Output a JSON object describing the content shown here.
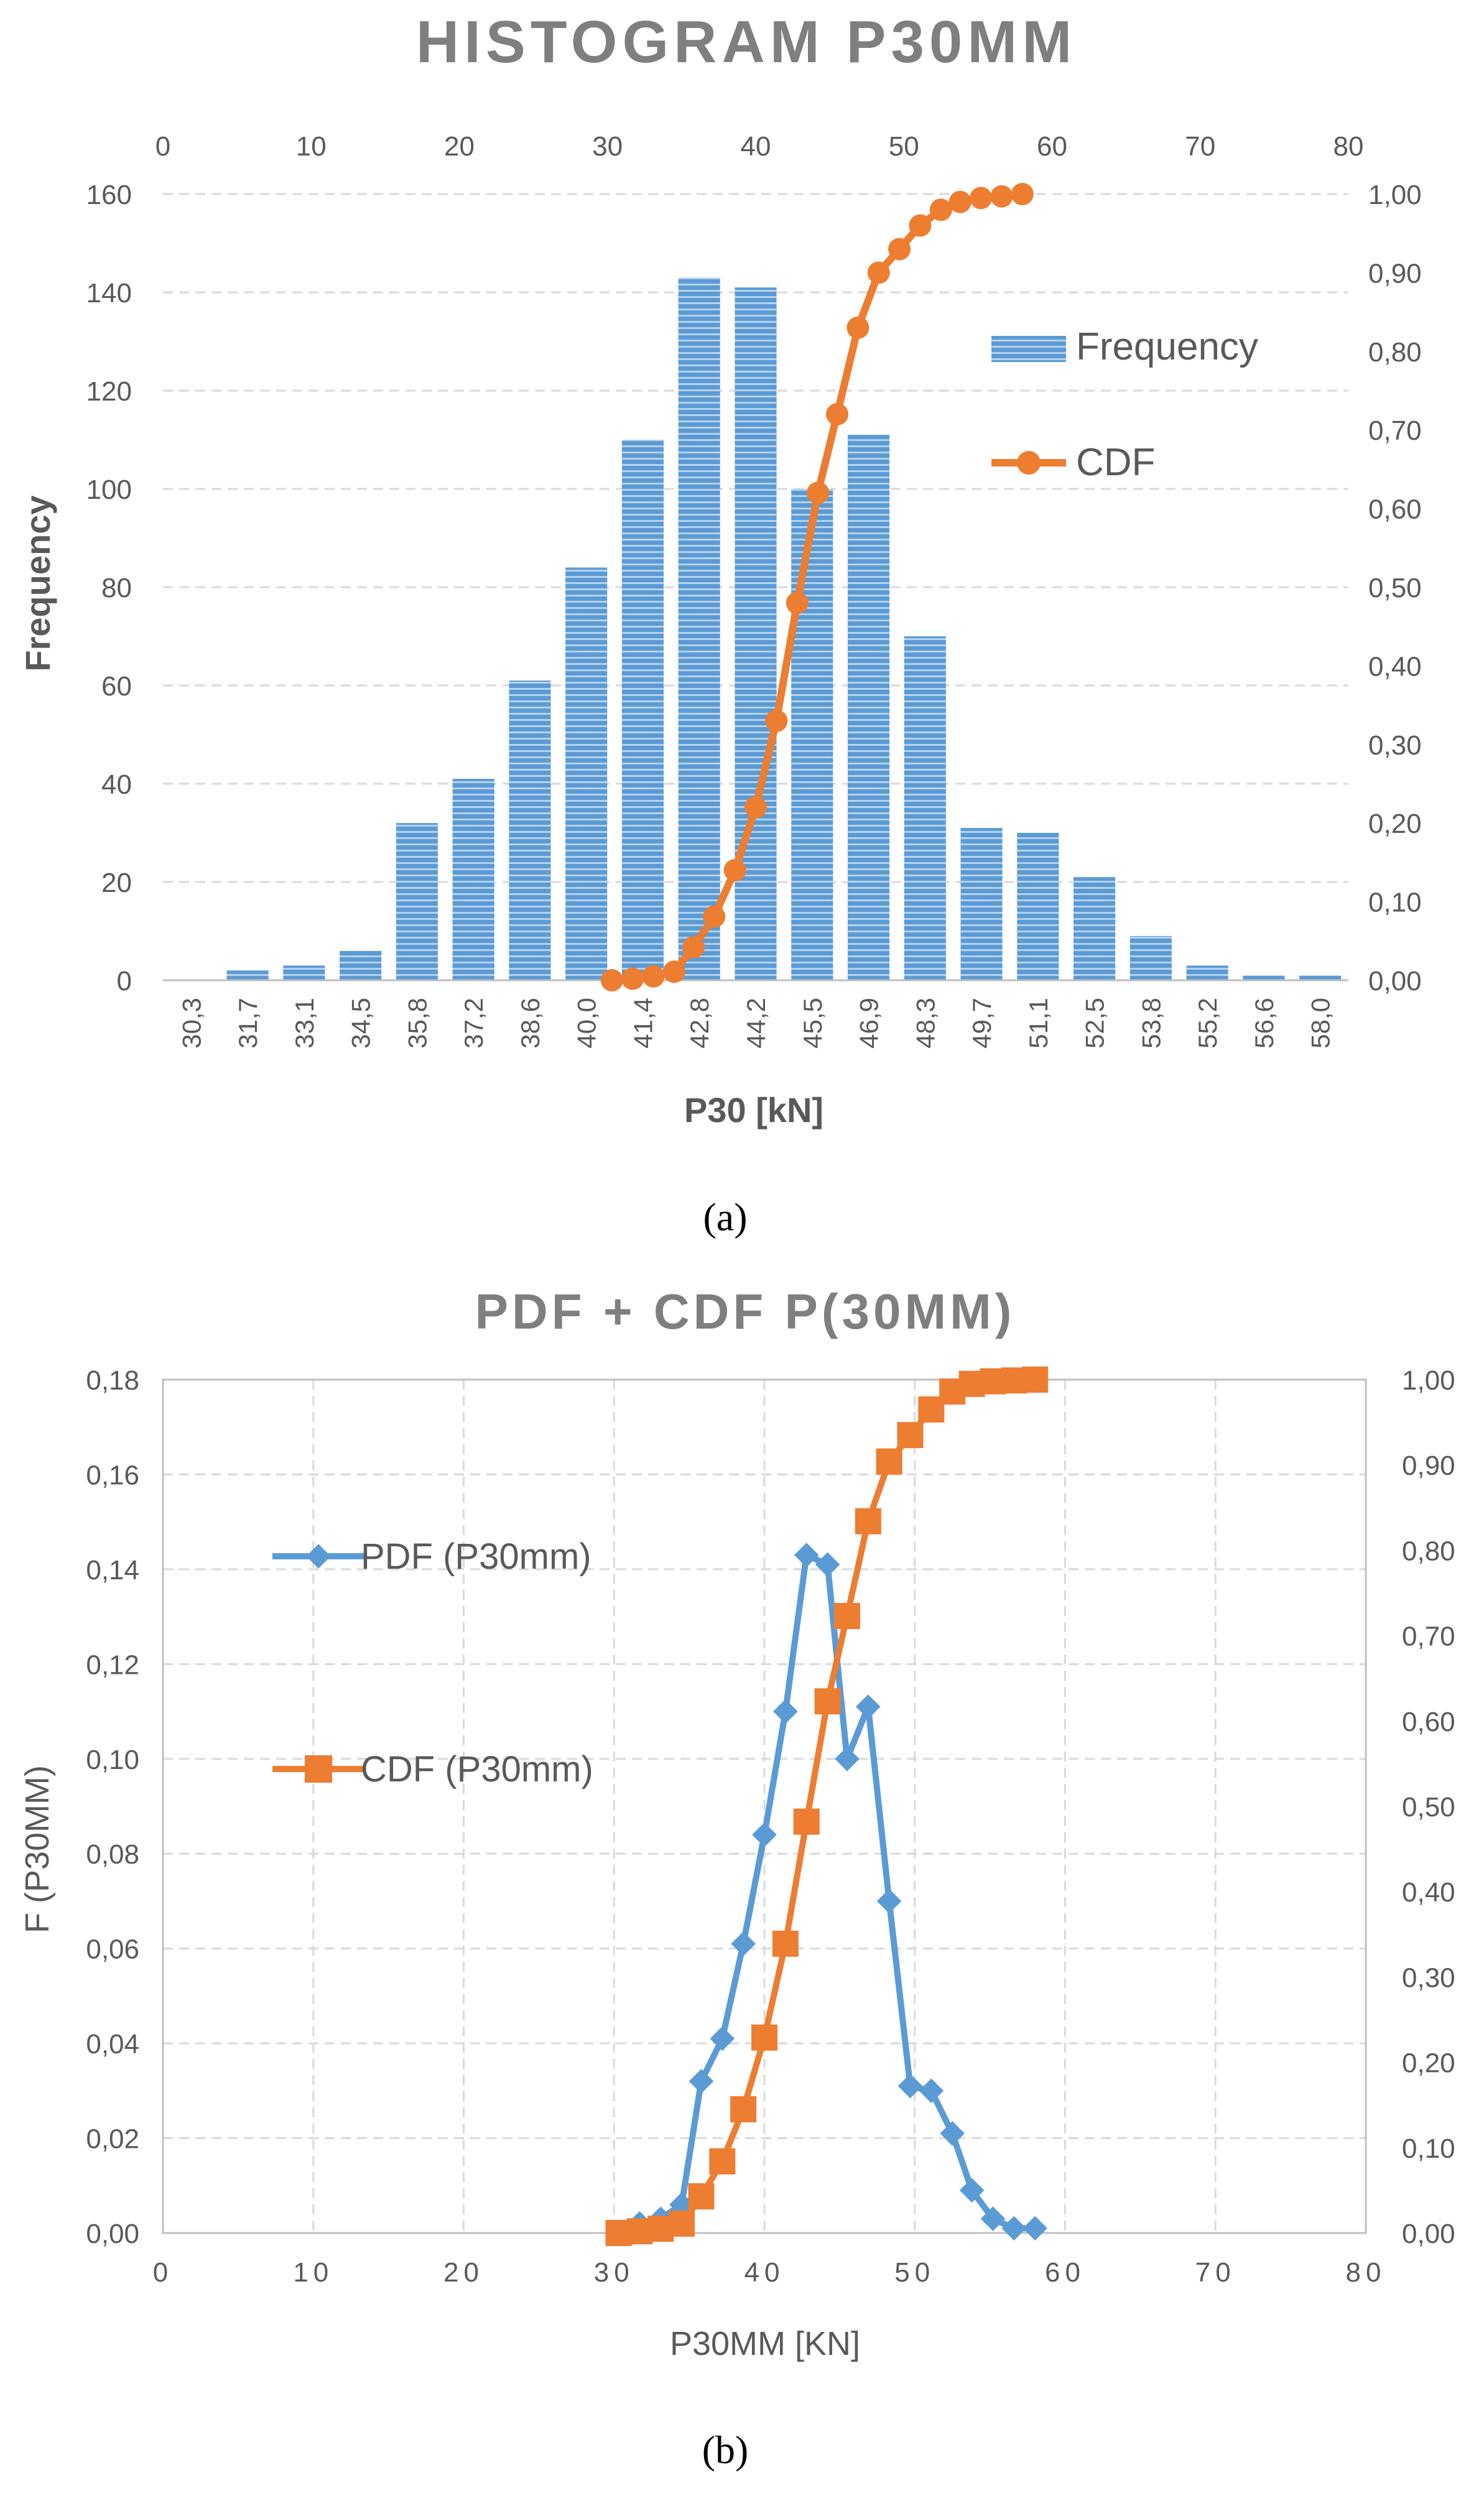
{
  "colors": {
    "bar": "#5B9BD5",
    "bar_stripe": "#ffffff",
    "cdf": "#ED7D31",
    "pdf": "#5B9BD5",
    "title": "#7F7F7F",
    "axis_text": "#595959",
    "grid": "#D9D9D9"
  },
  "chart_data": [
    {
      "type": "bar",
      "panel_label": "(a)",
      "title": "HISTOGRAM P30MM",
      "xlabel": "P30 [kN]",
      "ylabel": "Frequency",
      "categories": [
        "30,3",
        "31,7",
        "33,1",
        "34,5",
        "35,8",
        "37,2",
        "38,6",
        "40,0",
        "41,4",
        "42,8",
        "44,2",
        "45,5",
        "46,9",
        "48,3",
        "49,7",
        "51,1",
        "52,5",
        "53,8",
        "55,2",
        "56,6",
        "58,0"
      ],
      "ylim": [
        0,
        160
      ],
      "yticks": [
        "0",
        "20",
        "40",
        "60",
        "80",
        "100",
        "120",
        "140",
        "160"
      ],
      "top_axis": {
        "range": [
          0,
          80
        ],
        "ticks": [
          "0",
          "10",
          "20",
          "30",
          "40",
          "50",
          "60",
          "70",
          "80"
        ]
      },
      "right_axis": {
        "range": [
          0,
          1
        ],
        "ticks": [
          "0,00",
          "0,10",
          "0,20",
          "0,30",
          "0,40",
          "0,50",
          "0,60",
          "0,70",
          "0,80",
          "0,90",
          "1,00"
        ]
      },
      "grid": true,
      "legend_position": "right",
      "series": [
        {
          "name": "Frequency",
          "kind": "bar",
          "values": [
            0,
            2,
            3,
            6,
            32,
            41,
            61,
            84,
            110,
            143,
            141,
            100,
            111,
            70,
            31,
            30,
            21,
            9,
            3,
            1,
            1
          ]
        },
        {
          "name": "CDF",
          "kind": "line",
          "axes": "top-right",
          "x": [
            30.3,
            31.7,
            33.1,
            34.5,
            35.8,
            37.2,
            38.6,
            40.0,
            41.4,
            42.8,
            44.2,
            45.5,
            46.9,
            48.3,
            49.7,
            51.1,
            52.5,
            53.8,
            55.2,
            56.6,
            58.0
          ],
          "values": [
            0.0,
            0.002,
            0.005,
            0.011,
            0.042,
            0.081,
            0.14,
            0.22,
            0.33,
            0.48,
            0.62,
            0.72,
            0.83,
            0.9,
            0.93,
            0.96,
            0.98,
            0.99,
            0.995,
            0.997,
            1.0
          ]
        }
      ]
    },
    {
      "type": "line",
      "panel_label": "(b)",
      "title": "PDF + CDF P(30MM)",
      "xlabel": "P30MM [KN]",
      "ylabel": "F (P30MM)",
      "xlim": [
        0,
        80
      ],
      "xticks": [
        "0",
        "10",
        "20",
        "30",
        "40",
        "50",
        "60",
        "70",
        "80"
      ],
      "ylim": [
        0,
        0.18
      ],
      "yticks": [
        "0,00",
        "0,02",
        "0,04",
        "0,06",
        "0,08",
        "0,10",
        "0,12",
        "0,14",
        "0,16",
        "0,18"
      ],
      "right_axis": {
        "range": [
          0,
          1
        ],
        "ticks": [
          "0,00",
          "0,10",
          "0,20",
          "0,30",
          "0,40",
          "0,50",
          "0,60",
          "0,70",
          "0,80",
          "0,90",
          "1,00"
        ]
      },
      "grid": true,
      "legend_position": "left",
      "series": [
        {
          "name": "PDF (P30mm)",
          "marker": "diamond",
          "axis": "left",
          "x": [
            30.3,
            31.7,
            33.1,
            34.5,
            35.8,
            37.2,
            38.6,
            40.0,
            41.4,
            42.8,
            44.2,
            45.5,
            46.9,
            48.3,
            49.7,
            51.1,
            52.5,
            53.8,
            55.2,
            56.6,
            58.0
          ],
          "values": [
            0.0,
            0.002,
            0.003,
            0.006,
            0.032,
            0.041,
            0.061,
            0.084,
            0.11,
            0.143,
            0.141,
            0.1,
            0.111,
            0.07,
            0.031,
            0.03,
            0.021,
            0.009,
            0.003,
            0.001,
            0.001
          ]
        },
        {
          "name": "CDF (P30mm)",
          "marker": "square",
          "axis": "right",
          "x": [
            30.3,
            31.7,
            33.1,
            34.5,
            35.8,
            37.2,
            38.6,
            40.0,
            41.4,
            42.8,
            44.2,
            45.5,
            46.9,
            48.3,
            49.7,
            51.1,
            52.5,
            53.8,
            55.2,
            56.6,
            58.0
          ],
          "values": [
            0.0,
            0.002,
            0.005,
            0.011,
            0.043,
            0.084,
            0.145,
            0.229,
            0.339,
            0.482,
            0.623,
            0.723,
            0.834,
            0.904,
            0.935,
            0.965,
            0.986,
            0.995,
            0.998,
            0.999,
            1.0
          ]
        }
      ]
    }
  ]
}
